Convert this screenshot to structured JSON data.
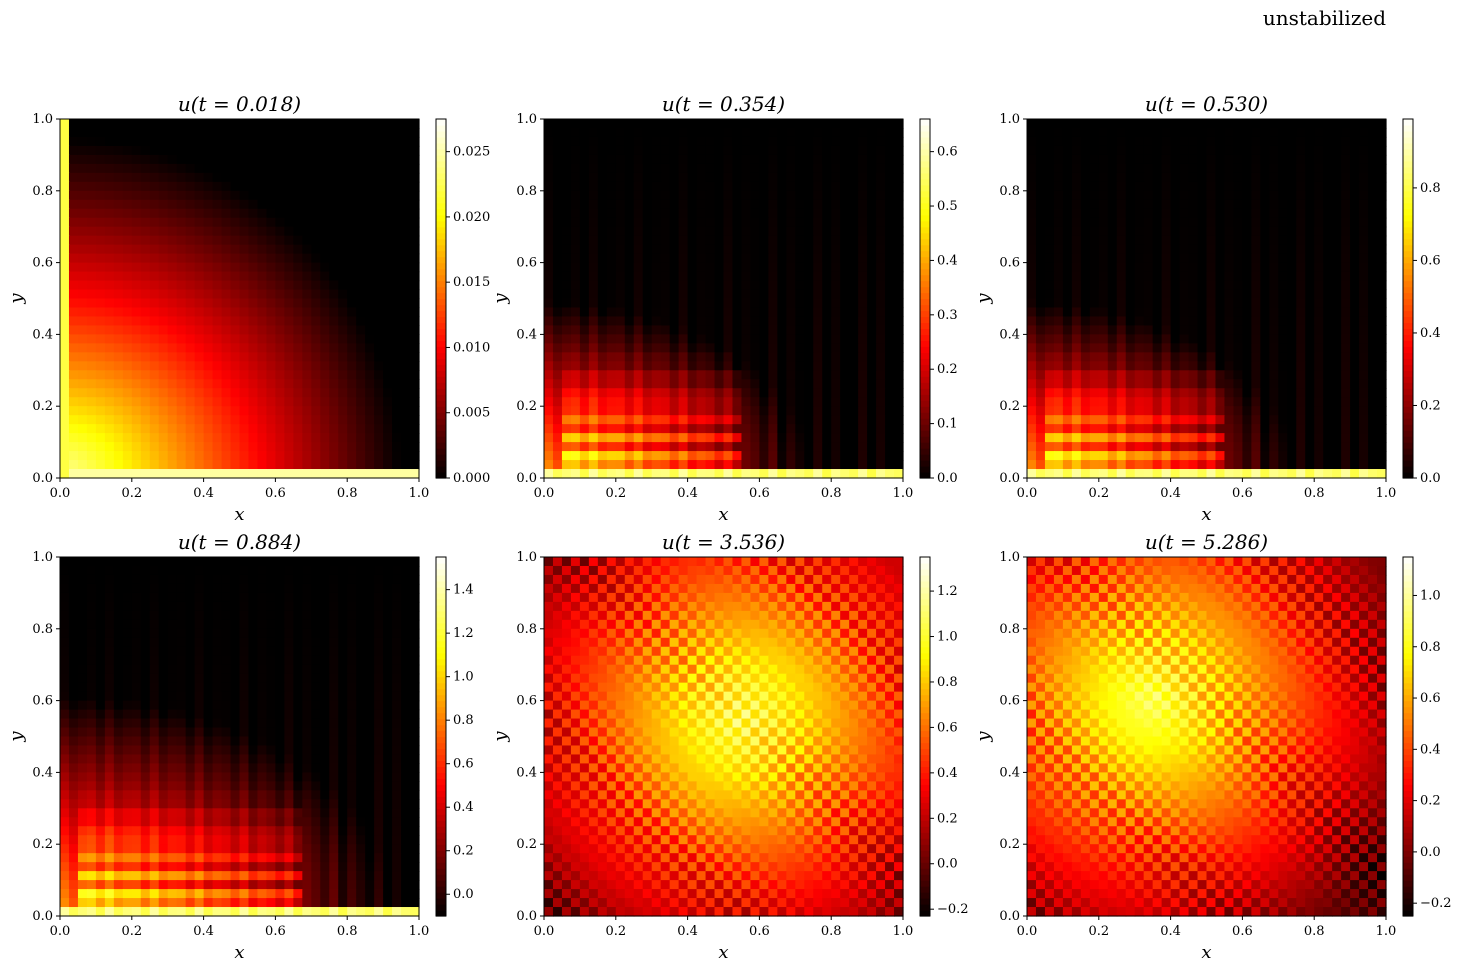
{
  "figure": {
    "title": "unstabilized"
  },
  "chart_data": [
    {
      "type": "heatmap",
      "title": "u(t = 0.018)",
      "xlabel": "x",
      "ylabel": "y",
      "xlim": [
        0,
        1
      ],
      "ylim": [
        0,
        1
      ],
      "xticks": [
        "0.0",
        "0.2",
        "0.4",
        "0.6",
        "0.8",
        "1.0"
      ],
      "yticks": [
        "0.0",
        "0.2",
        "0.4",
        "0.6",
        "0.8",
        "1.0"
      ],
      "colormap": "hot",
      "colorbar": {
        "range": [
          0,
          0.0275
        ],
        "ticks": [
          0,
          0.005,
          0.01,
          0.015,
          0.02,
          0.025
        ],
        "tick_labels": [
          "0.000",
          "0.005",
          "0.010",
          "0.015",
          "0.020",
          "0.025"
        ]
      },
      "pattern": "smooth"
    },
    {
      "type": "heatmap",
      "title": "u(t = 0.354)",
      "xlabel": "x",
      "ylabel": "y",
      "xlim": [
        0,
        1
      ],
      "ylim": [
        0,
        1
      ],
      "xticks": [
        "0.0",
        "0.2",
        "0.4",
        "0.6",
        "0.8",
        "1.0"
      ],
      "yticks": [
        "0.0",
        "0.2",
        "0.4",
        "0.6",
        "0.8",
        "1.0"
      ],
      "colormap": "hot",
      "colorbar": {
        "range": [
          0,
          0.66
        ],
        "ticks": [
          0,
          0.1,
          0.2,
          0.3,
          0.4,
          0.5,
          0.6
        ],
        "tick_labels": [
          "0.0",
          "0.1",
          "0.2",
          "0.3",
          "0.4",
          "0.5",
          "0.6"
        ]
      },
      "pattern": "front"
    },
    {
      "type": "heatmap",
      "title": "u(t = 0.530)",
      "xlabel": "x",
      "ylabel": "y",
      "xlim": [
        0,
        1
      ],
      "ylim": [
        0,
        1
      ],
      "xticks": [
        "0.0",
        "0.2",
        "0.4",
        "0.6",
        "0.8",
        "1.0"
      ],
      "yticks": [
        "0.0",
        "0.2",
        "0.4",
        "0.6",
        "0.8",
        "1.0"
      ],
      "colormap": "hot",
      "colorbar": {
        "range": [
          0,
          0.99
        ],
        "ticks": [
          0,
          0.2,
          0.4,
          0.6,
          0.8
        ],
        "tick_labels": [
          "0.0",
          "0.2",
          "0.4",
          "0.6",
          "0.8"
        ]
      },
      "pattern": "front"
    },
    {
      "type": "heatmap",
      "title": "u(t = 0.884)",
      "xlabel": "x",
      "ylabel": "y",
      "xlim": [
        0,
        1
      ],
      "ylim": [
        0,
        1
      ],
      "xticks": [
        "0.0",
        "0.2",
        "0.4",
        "0.6",
        "0.8",
        "1.0"
      ],
      "yticks": [
        "0.0",
        "0.2",
        "0.4",
        "0.6",
        "0.8",
        "1.0"
      ],
      "colormap": "hot",
      "colorbar": {
        "range": [
          -0.1,
          1.55
        ],
        "ticks": [
          0.0,
          0.2,
          0.4,
          0.6,
          0.8,
          1.0,
          1.2,
          1.4
        ],
        "tick_labels": [
          "0.0",
          "0.2",
          "0.4",
          "0.6",
          "0.8",
          "1.0",
          "1.2",
          "1.4"
        ]
      },
      "pattern": "front2"
    },
    {
      "type": "heatmap",
      "title": "u(t = 3.536)",
      "xlabel": "x",
      "ylabel": "y",
      "xlim": [
        0,
        1
      ],
      "ylim": [
        0,
        1
      ],
      "xticks": [
        "0.0",
        "0.2",
        "0.4",
        "0.6",
        "0.8",
        "1.0"
      ],
      "yticks": [
        "0.0",
        "0.2",
        "0.4",
        "0.6",
        "0.8",
        "1.0"
      ],
      "colormap": "hot",
      "colorbar": {
        "range": [
          -0.23,
          1.35
        ],
        "ticks": [
          -0.2,
          0.0,
          0.2,
          0.4,
          0.6,
          0.8,
          1.0,
          1.2
        ],
        "tick_labels": [
          "−0.2",
          "0.0",
          "0.2",
          "0.4",
          "0.6",
          "0.8",
          "1.0",
          "1.2"
        ]
      },
      "pattern": "circle"
    },
    {
      "type": "heatmap",
      "title": "u(t = 5.286)",
      "xlabel": "x",
      "ylabel": "y",
      "xlim": [
        0,
        1
      ],
      "ylim": [
        0,
        1
      ],
      "xticks": [
        "0.0",
        "0.2",
        "0.4",
        "0.6",
        "0.8",
        "1.0"
      ],
      "yticks": [
        "0.0",
        "0.2",
        "0.4",
        "0.6",
        "0.8",
        "1.0"
      ],
      "colormap": "hot",
      "colorbar": {
        "range": [
          -0.25,
          1.15
        ],
        "ticks": [
          -0.2,
          0.0,
          0.2,
          0.4,
          0.6,
          0.8,
          1.0
        ],
        "tick_labels": [
          "−0.2",
          "0.0",
          "0.2",
          "0.4",
          "0.6",
          "0.8",
          "1.0"
        ]
      },
      "pattern": "circle2"
    }
  ]
}
